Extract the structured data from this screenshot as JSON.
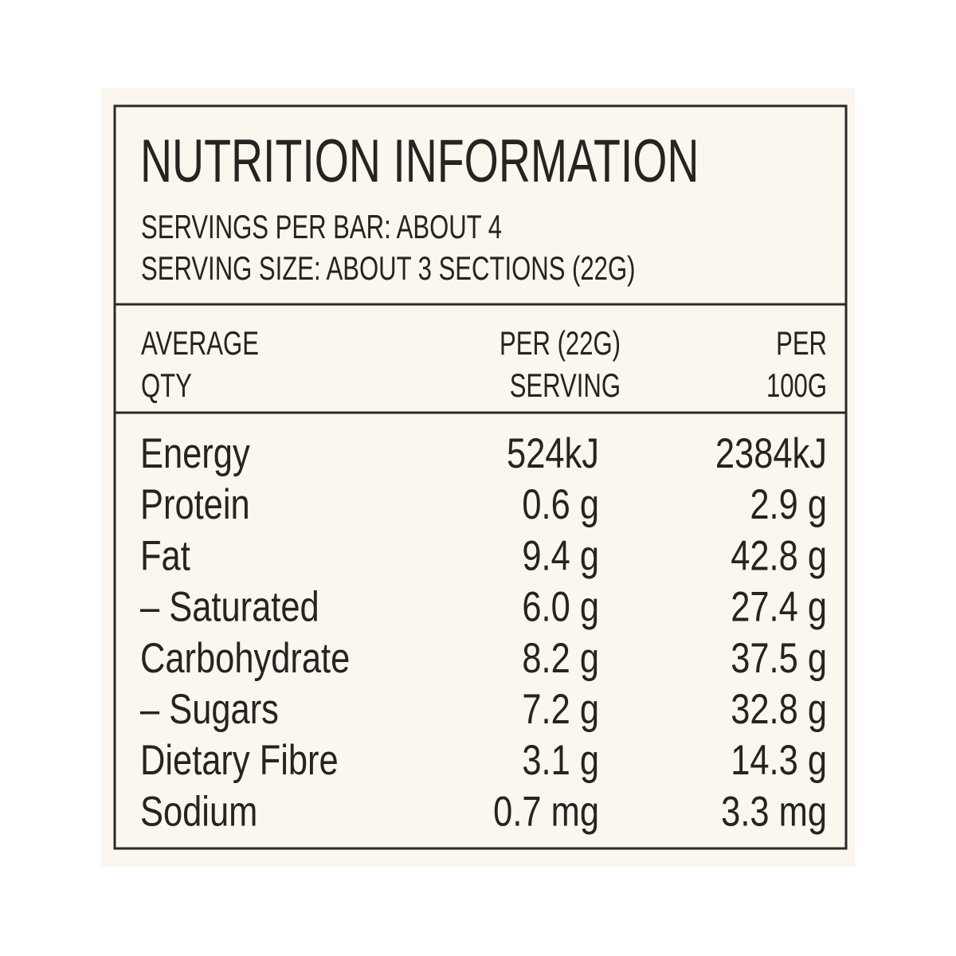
{
  "header": {
    "title": "NUTRITION INFORMATION",
    "servings_per_bar": "SERVINGS PER BAR: ABOUT 4",
    "serving_size": "SERVING SIZE: ABOUT 3 SECTIONS (22G)"
  },
  "table": {
    "columns": [
      [
        "AVERAGE",
        "QTY"
      ],
      [
        "PER (22G)",
        "SERVING"
      ],
      [
        "PER",
        "100G"
      ]
    ],
    "rows": [
      [
        "Energy",
        "524kJ",
        "2384kJ"
      ],
      [
        "Protein",
        "0.6 g",
        "2.9 g"
      ],
      [
        "Fat",
        "9.4 g",
        "42.8 g"
      ],
      [
        "– Saturated",
        "6.0 g",
        "27.4 g"
      ],
      [
        "Carbohydrate",
        "8.2 g",
        "37.5 g"
      ],
      [
        "– Sugars",
        "7.2 g",
        "32.8 g"
      ],
      [
        "Dietary Fibre",
        "3.1 g",
        "14.3 g"
      ],
      [
        "Sodium",
        "0.7 mg",
        "3.3 mg"
      ]
    ]
  }
}
